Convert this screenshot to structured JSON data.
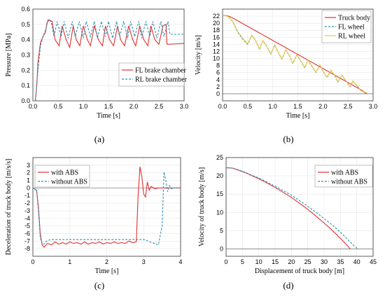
{
  "colors": {
    "red": "#e03030",
    "blue": "#2f8fb0",
    "yellow": "#e8c840"
  },
  "chart_data": [
    {
      "id": "a",
      "type": "line",
      "panel_label": "(a)",
      "xlabel": "Time [s]",
      "ylabel": "Pressure [MPa]",
      "xlim": [
        0,
        3.0
      ],
      "ylim": [
        0,
        0.6
      ],
      "xticks": [
        "0.0",
        "0.5",
        "1.0",
        "1.5",
        "2.0",
        "2.5",
        "3.0"
      ],
      "yticks": [
        "0.0",
        "0.1",
        "0.2",
        "0.3",
        "0.4",
        "0.5",
        "0.6"
      ],
      "grid": true,
      "legend_position": "bottom-right",
      "series": [
        {
          "name": "FL brake chamber",
          "color": "red",
          "dash": "",
          "x": [
            0.05,
            0.08,
            0.1,
            0.15,
            0.2,
            0.25,
            0.28,
            0.32,
            0.38,
            0.44,
            0.52,
            0.58,
            0.66,
            0.73,
            0.8,
            0.86,
            0.93,
            1.0,
            1.08,
            1.14,
            1.22,
            1.3,
            1.38,
            1.44,
            1.52,
            1.6,
            1.68,
            1.74,
            1.82,
            1.9,
            1.98,
            2.04,
            2.12,
            2.2,
            2.28,
            2.34,
            2.42,
            2.5,
            2.58,
            2.64,
            2.66,
            2.7,
            3.0
          ],
          "y": [
            0.0,
            0.12,
            0.25,
            0.38,
            0.42,
            0.45,
            0.51,
            0.53,
            0.52,
            0.4,
            0.36,
            0.49,
            0.4,
            0.35,
            0.49,
            0.4,
            0.36,
            0.49,
            0.4,
            0.36,
            0.49,
            0.4,
            0.36,
            0.49,
            0.4,
            0.36,
            0.49,
            0.4,
            0.36,
            0.49,
            0.4,
            0.36,
            0.49,
            0.4,
            0.36,
            0.49,
            0.4,
            0.37,
            0.49,
            0.5,
            0.37,
            0.37,
            0.375
          ]
        },
        {
          "name": "RL brake chamber",
          "color": "blue",
          "dash": "3,2",
          "x": [
            0.05,
            0.1,
            0.15,
            0.2,
            0.26,
            0.3,
            0.36,
            0.42,
            0.48,
            0.56,
            0.62,
            0.7,
            0.78,
            0.84,
            0.92,
            1.0,
            1.06,
            1.14,
            1.22,
            1.28,
            1.36,
            1.44,
            1.5,
            1.58,
            1.66,
            1.72,
            1.8,
            1.88,
            1.94,
            2.02,
            2.1,
            2.16,
            2.24,
            2.32,
            2.38,
            2.46,
            2.54,
            2.6,
            2.68,
            2.72,
            3.0
          ],
          "y": [
            0.0,
            0.2,
            0.36,
            0.42,
            0.47,
            0.53,
            0.52,
            0.42,
            0.52,
            0.42,
            0.52,
            0.41,
            0.52,
            0.42,
            0.52,
            0.41,
            0.52,
            0.42,
            0.52,
            0.41,
            0.52,
            0.42,
            0.52,
            0.41,
            0.52,
            0.42,
            0.52,
            0.41,
            0.52,
            0.42,
            0.52,
            0.41,
            0.52,
            0.42,
            0.52,
            0.41,
            0.52,
            0.42,
            0.52,
            0.435,
            0.435
          ]
        }
      ]
    },
    {
      "id": "b",
      "type": "line",
      "panel_label": "(b)",
      "xlabel": "Time [s]",
      "ylabel": "Velocity [m/s]",
      "xlim": [
        0,
        3.0
      ],
      "ylim": [
        -2,
        24
      ],
      "xticks": [
        "0.0",
        "0.5",
        "1.0",
        "1.5",
        "2.0",
        "2.5",
        "3.0"
      ],
      "yticks": [
        "0",
        "2",
        "4",
        "6",
        "8",
        "10",
        "12",
        "14",
        "16",
        "18",
        "20",
        "22"
      ],
      "grid": true,
      "legend_position": "top-right",
      "series": [
        {
          "name": "Truck body",
          "color": "red",
          "dash": "",
          "x": [
            0,
            0.1,
            0.2,
            2.8,
            2.85,
            2.9
          ],
          "y": [
            22.2,
            22.1,
            21.5,
            0.8,
            0.1,
            0.0
          ]
        },
        {
          "name": "FL wheel",
          "color": "blue",
          "dash": "3,2",
          "x": [
            0,
            0.1,
            0.2,
            0.3,
            0.4,
            0.5,
            0.58,
            0.66,
            0.74,
            0.8,
            0.88,
            0.96,
            1.04,
            1.1,
            1.18,
            1.26,
            1.34,
            1.4,
            1.48,
            1.56,
            1.64,
            1.7,
            1.78,
            1.86,
            1.94,
            2.0,
            2.08,
            2.16,
            2.24,
            2.3,
            2.38,
            2.46,
            2.54,
            2.6,
            2.68,
            2.76,
            2.82,
            2.9
          ],
          "y": [
            22.2,
            22.0,
            20.5,
            17.5,
            15.5,
            14.0,
            16.5,
            15.0,
            12.5,
            15.0,
            13.5,
            11.2,
            13.8,
            12.0,
            9.8,
            12.4,
            10.6,
            8.6,
            11.0,
            9.2,
            7.3,
            9.6,
            7.8,
            6.0,
            8.1,
            6.4,
            4.6,
            6.6,
            5.0,
            3.3,
            5.2,
            3.6,
            2.0,
            3.6,
            2.2,
            0.8,
            0.5,
            0.0
          ]
        },
        {
          "name": "RL wheel",
          "color": "yellow",
          "dash": "",
          "x": [
            0,
            0.1,
            0.2,
            0.3,
            0.4,
            0.5,
            0.58,
            0.66,
            0.74,
            0.8,
            0.88,
            0.96,
            1.04,
            1.1,
            1.18,
            1.26,
            1.34,
            1.4,
            1.48,
            1.56,
            1.64,
            1.7,
            1.78,
            1.86,
            1.94,
            2.0,
            2.08,
            2.16,
            2.24,
            2.3,
            2.38,
            2.46,
            2.54,
            2.6,
            2.68,
            2.76,
            2.82,
            2.9
          ],
          "y": [
            22.2,
            22.0,
            20.6,
            17.7,
            15.7,
            14.2,
            16.6,
            15.1,
            12.6,
            15.1,
            13.6,
            11.3,
            13.9,
            12.1,
            9.9,
            12.5,
            10.7,
            8.7,
            11.1,
            9.3,
            7.4,
            9.7,
            7.9,
            6.1,
            8.2,
            6.5,
            4.7,
            6.7,
            5.1,
            3.4,
            5.3,
            3.7,
            2.1,
            3.7,
            2.3,
            0.9,
            0.6,
            0.0
          ]
        }
      ]
    },
    {
      "id": "c",
      "type": "line",
      "panel_label": "(c)",
      "xlabel": "Time [s]",
      "ylabel": "Deceleration of truck body [m/s/s]",
      "xlim": [
        0,
        4
      ],
      "ylim": [
        -9,
        4
      ],
      "xticks": [
        "0",
        "1",
        "2",
        "3",
        "4"
      ],
      "yticks": [
        "-8",
        "-7",
        "-6",
        "-5",
        "-4",
        "-3",
        "-2",
        "-1",
        "0",
        "1",
        "2",
        "3"
      ],
      "grid": true,
      "legend_position": "top-left",
      "series": [
        {
          "name": "with ABS",
          "color": "red",
          "dash": "",
          "x": [
            0,
            0.1,
            0.15,
            0.2,
            0.25,
            0.3,
            0.4,
            0.5,
            0.6,
            0.7,
            0.8,
            0.9,
            1.0,
            1.1,
            1.2,
            1.3,
            1.4,
            1.5,
            1.6,
            1.7,
            1.8,
            1.9,
            2.0,
            2.1,
            2.2,
            2.3,
            2.4,
            2.5,
            2.6,
            2.7,
            2.8,
            2.85,
            2.9,
            2.95,
            3.0,
            3.05,
            3.1,
            3.15,
            3.2,
            3.3,
            3.4,
            3.6,
            4.0
          ],
          "y": [
            0,
            -0.3,
            -2.5,
            -6.0,
            -7.5,
            -7.8,
            -7.3,
            -7.5,
            -7.1,
            -7.4,
            -7.2,
            -7.4,
            -7.1,
            -7.3,
            -7.2,
            -7.4,
            -7.1,
            -7.4,
            -7.2,
            -7.3,
            -7.1,
            -7.4,
            -7.2,
            -7.3,
            -7.1,
            -7.3,
            -7.2,
            -7.3,
            -7.0,
            -7.2,
            -7.1,
            -1.0,
            2.8,
            1.5,
            -0.8,
            -1.2,
            0.8,
            -0.3,
            0.2,
            -0.1,
            0.0,
            0.0,
            0.0
          ]
        },
        {
          "name": "without ABS",
          "color": "blue",
          "dash": "3,2",
          "x": [
            0,
            0.1,
            0.15,
            0.2,
            0.25,
            0.3,
            0.4,
            0.5,
            1.0,
            2.0,
            3.0,
            3.4,
            3.5,
            3.55,
            3.6,
            3.65,
            3.7,
            3.75,
            3.8,
            4.0
          ],
          "y": [
            0,
            -0.3,
            -3.0,
            -6.5,
            -7.4,
            -7.4,
            -6.9,
            -6.8,
            -6.8,
            -6.8,
            -6.8,
            -7.5,
            -5.0,
            2.1,
            1.0,
            -0.5,
            0.3,
            -0.1,
            0.0,
            0.0
          ]
        }
      ]
    },
    {
      "id": "d",
      "type": "line",
      "panel_label": "(d)",
      "xlabel": "Displacement of truck body [m]",
      "ylabel": "Velocity of truck body [m/s]",
      "xlim": [
        0,
        45
      ],
      "ylim": [
        -2,
        25
      ],
      "xticks": [
        "0",
        "5",
        "10",
        "15",
        "20",
        "25",
        "30",
        "35",
        "40",
        "45"
      ],
      "yticks": [
        "0",
        "5",
        "10",
        "15",
        "20",
        "25"
      ],
      "grid": true,
      "legend_position": "top-right",
      "series": [
        {
          "name": "with ABS",
          "color": "red",
          "dash": "",
          "x": [
            0,
            2,
            4,
            6,
            8,
            10,
            12,
            14,
            16,
            18,
            20,
            22,
            24,
            26,
            28,
            30,
            32,
            34,
            35,
            36,
            37,
            37.5,
            38
          ],
          "y": [
            22.2,
            22.1,
            21.5,
            20.8,
            20.0,
            19.2,
            18.3,
            17.3,
            16.3,
            15.2,
            14.1,
            12.8,
            11.5,
            10.1,
            8.6,
            7.1,
            5.5,
            3.8,
            2.9,
            2.0,
            1.0,
            0.5,
            0.0
          ]
        },
        {
          "name": "without ABS",
          "color": "blue",
          "dash": "3,2",
          "x": [
            0,
            2,
            4,
            6,
            8,
            10,
            12,
            14,
            16,
            18,
            20,
            22,
            24,
            26,
            28,
            30,
            32,
            34,
            36,
            37,
            38,
            39,
            39.8,
            40.4
          ],
          "y": [
            22.2,
            22.1,
            21.6,
            20.9,
            20.1,
            19.4,
            18.5,
            17.6,
            16.7,
            15.7,
            14.7,
            13.5,
            12.3,
            11.0,
            9.7,
            8.3,
            6.9,
            5.4,
            3.7,
            2.8,
            1.9,
            1.0,
            0.4,
            0.0
          ]
        }
      ]
    }
  ]
}
